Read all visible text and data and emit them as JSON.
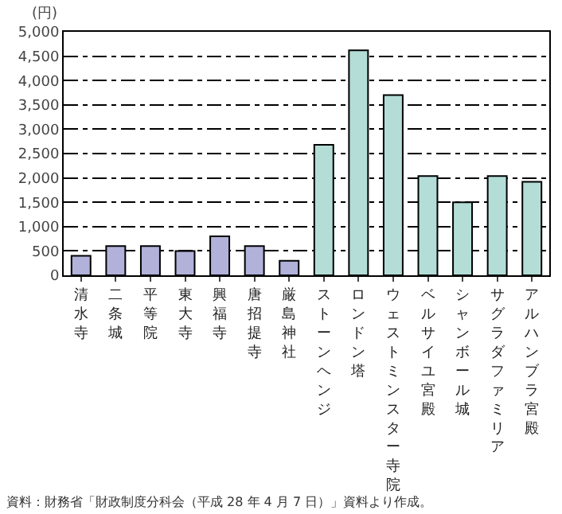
{
  "chart_data": {
    "type": "bar",
    "categories": [
      "清水寺",
      "二条城",
      "平等院",
      "東大寺",
      "興福寺",
      "唐招提寺",
      "厳島神社",
      "ストーンヘンジ",
      "ロンドン塔",
      "ウェストミンスター寺院",
      "ベルサイユ宮殿",
      "シャンボール城",
      "サグラダファミリア",
      "アルハンブラ宮殿"
    ],
    "values": [
      400,
      600,
      600,
      500,
      800,
      600,
      300,
      2680,
      4620,
      3700,
      2040,
      1500,
      2040,
      1920
    ],
    "colors": [
      "#b1b1da",
      "#b1b1da",
      "#b1b1da",
      "#b1b1da",
      "#b1b1da",
      "#b1b1da",
      "#b1b1da",
      "#b3ddd6",
      "#b3ddd6",
      "#b3ddd6",
      "#b3ddd6",
      "#b3ddd6",
      "#b3ddd6",
      "#b3ddd6"
    ],
    "ylabel": "(円)",
    "ylim": [
      0,
      5000
    ],
    "yticks": [
      {
        "value": 0,
        "label": "0"
      },
      {
        "value": 500,
        "label": "500"
      },
      {
        "value": 1000,
        "label": "1,000"
      },
      {
        "value": 1500,
        "label": "1,500"
      },
      {
        "value": 2000,
        "label": "2,000"
      },
      {
        "value": 2500,
        "label": "2,500"
      },
      {
        "value": 3000,
        "label": "3,000"
      },
      {
        "value": 3500,
        "label": "3,500"
      },
      {
        "value": 4000,
        "label": "4,000"
      },
      {
        "value": 4500,
        "label": "4,500"
      },
      {
        "value": 5000,
        "label": "5,000"
      }
    ],
    "grid": "y",
    "line_style": "dashed",
    "annotations": [
      "資料：財務省「財政制度分科会（平成 28 年 4 月 7 日）」資料より作成。"
    ]
  }
}
